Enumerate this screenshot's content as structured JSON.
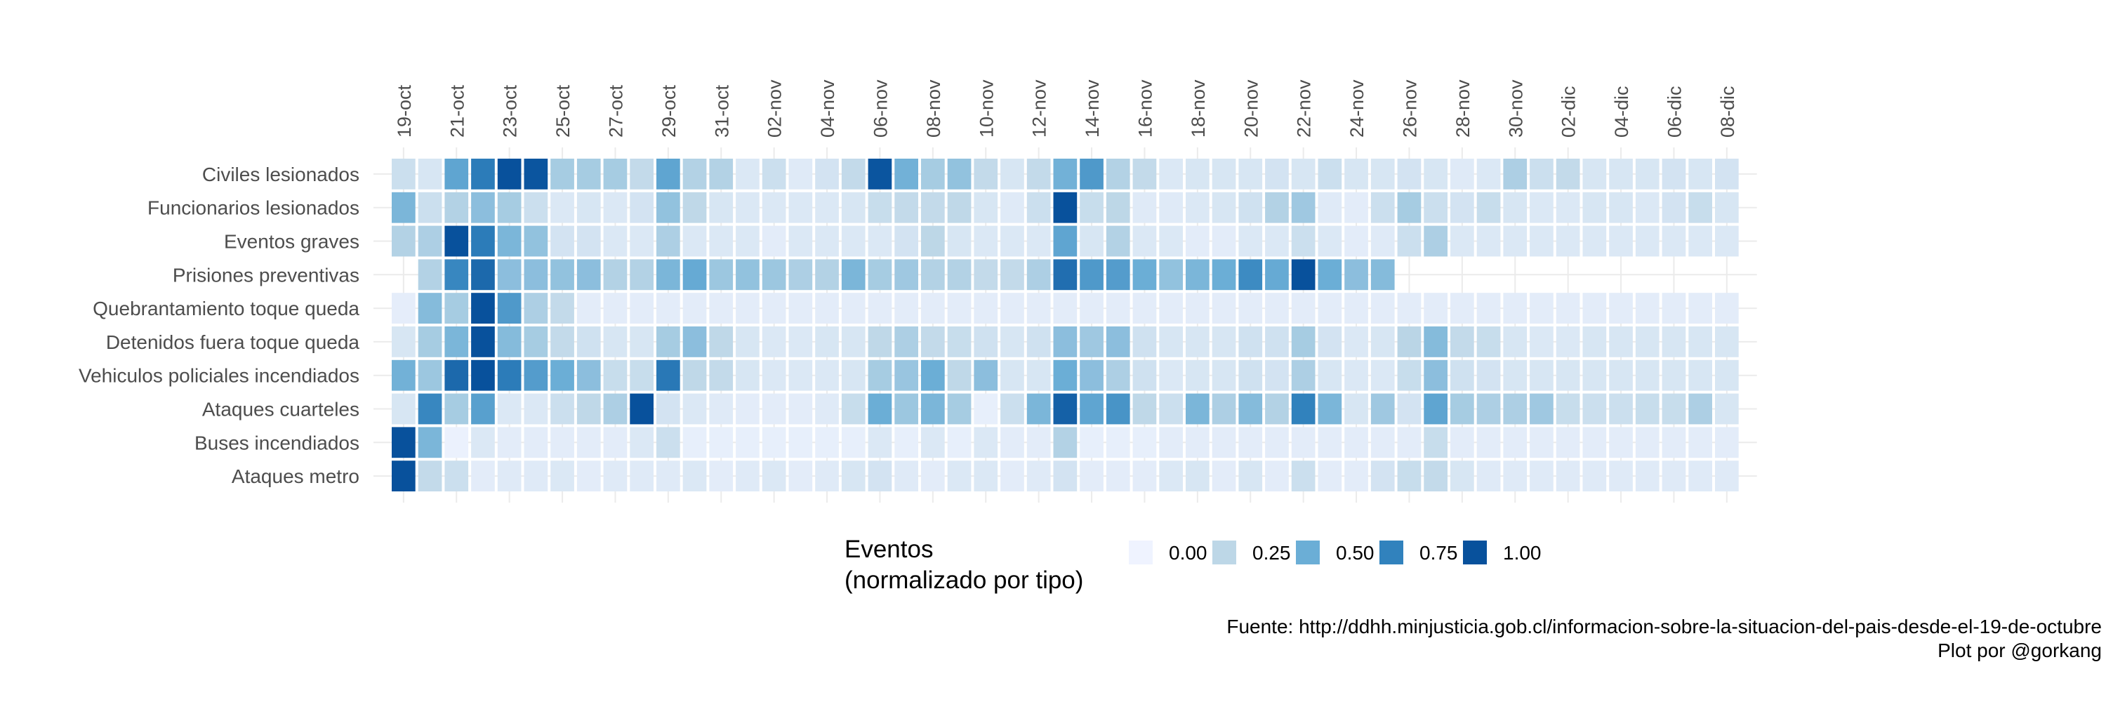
{
  "chart_data": {
    "type": "heatmap",
    "title": "",
    "xlabel": "",
    "ylabel": "",
    "x_tick_labels": [
      "19-oct",
      "21-oct",
      "23-oct",
      "25-oct",
      "27-oct",
      "29-oct",
      "31-oct",
      "02-nov",
      "04-nov",
      "06-nov",
      "08-nov",
      "10-nov",
      "12-nov",
      "14-nov",
      "16-nov",
      "18-nov",
      "20-nov",
      "22-nov",
      "24-nov",
      "26-nov",
      "28-nov",
      "30-nov",
      "02-dic",
      "04-dic",
      "06-dic",
      "08-dic"
    ],
    "x_start": "2019-10-19",
    "x_end": "2019-12-08",
    "rows": [
      "Civiles lesionados",
      "Funcionarios lesionados",
      "Eventos graves",
      "Prisiones preventivas",
      "Quebrantamiento toque queda",
      "Detenidos fuera toque queda",
      "Vehiculos policiales incendiados",
      "Ataques cuarteles",
      "Buses incendiados",
      "Ataques metro"
    ],
    "values": [
      [
        0.18,
        0.12,
        0.55,
        0.78,
        1.0,
        0.98,
        0.32,
        0.32,
        0.32,
        0.22,
        0.55,
        0.28,
        0.28,
        0.1,
        0.18,
        0.08,
        0.14,
        0.22,
        0.98,
        0.48,
        0.32,
        0.38,
        0.22,
        0.12,
        0.22,
        0.48,
        0.62,
        0.28,
        0.22,
        0.1,
        0.12,
        0.12,
        0.12,
        0.14,
        0.12,
        0.18,
        0.12,
        0.12,
        0.14,
        0.12,
        0.08,
        0.1,
        0.3,
        0.18,
        0.22,
        0.12,
        0.12,
        0.12,
        0.14,
        0.12,
        0.14
      ],
      [
        0.45,
        0.18,
        0.28,
        0.4,
        0.32,
        0.18,
        0.1,
        0.12,
        0.1,
        0.14,
        0.38,
        0.24,
        0.12,
        0.1,
        0.1,
        0.1,
        0.1,
        0.12,
        0.2,
        0.22,
        0.22,
        0.24,
        0.12,
        0.08,
        0.18,
        1.0,
        0.2,
        0.25,
        0.08,
        0.08,
        0.1,
        0.12,
        0.16,
        0.28,
        0.34,
        0.08,
        0.06,
        0.18,
        0.32,
        0.18,
        0.14,
        0.2,
        0.12,
        0.1,
        0.1,
        0.12,
        0.12,
        0.1,
        0.14,
        0.2,
        0.12
      ],
      [
        0.28,
        0.3,
        1.0,
        0.78,
        0.45,
        0.38,
        0.14,
        0.14,
        0.1,
        0.1,
        0.3,
        0.1,
        0.1,
        0.1,
        0.06,
        0.1,
        0.1,
        0.1,
        0.1,
        0.14,
        0.25,
        0.12,
        0.1,
        0.1,
        0.1,
        0.55,
        0.12,
        0.28,
        0.1,
        0.1,
        0.06,
        0.06,
        0.1,
        0.1,
        0.18,
        0.1,
        0.06,
        0.08,
        0.18,
        0.3,
        0.1,
        0.1,
        0.1,
        0.1,
        0.1,
        0.1,
        0.1,
        0.1,
        0.1,
        0.1,
        0.1
      ],
      [
        null,
        0.28,
        0.72,
        0.88,
        0.4,
        0.4,
        0.38,
        0.4,
        0.28,
        0.28,
        0.45,
        0.52,
        0.35,
        0.38,
        0.35,
        0.3,
        0.28,
        0.45,
        0.32,
        0.34,
        0.28,
        0.28,
        0.22,
        0.22,
        0.3,
        0.85,
        0.62,
        0.6,
        0.5,
        0.38,
        0.45,
        0.5,
        0.7,
        0.52,
        1.0,
        0.5,
        0.4,
        0.42,
        null,
        null,
        null,
        null,
        null,
        null,
        null,
        null,
        null,
        null,
        null,
        null,
        null
      ],
      [
        0.05,
        0.42,
        0.32,
        1.0,
        0.62,
        0.3,
        0.22,
        0.06,
        0.06,
        0.06,
        0.06,
        0.06,
        0.06,
        0.06,
        0.06,
        0.06,
        0.06,
        0.06,
        0.06,
        0.06,
        0.06,
        0.06,
        0.06,
        0.06,
        0.06,
        0.06,
        0.06,
        0.06,
        0.06,
        0.06,
        0.06,
        0.06,
        0.06,
        0.06,
        0.06,
        0.06,
        0.06,
        0.06,
        0.06,
        0.06,
        0.06,
        0.06,
        0.06,
        0.06,
        0.06,
        0.06,
        0.06,
        0.06,
        0.06,
        0.06,
        0.06
      ],
      [
        0.12,
        0.32,
        0.45,
        1.0,
        0.42,
        0.32,
        0.22,
        0.16,
        0.12,
        0.12,
        0.32,
        0.4,
        0.24,
        0.12,
        0.1,
        0.1,
        0.12,
        0.12,
        0.24,
        0.3,
        0.22,
        0.2,
        0.16,
        0.12,
        0.16,
        0.4,
        0.34,
        0.4,
        0.16,
        0.12,
        0.12,
        0.12,
        0.16,
        0.16,
        0.32,
        0.14,
        0.1,
        0.12,
        0.26,
        0.42,
        0.22,
        0.2,
        0.12,
        0.1,
        0.1,
        0.12,
        0.12,
        0.12,
        0.12,
        0.12,
        0.12
      ],
      [
        0.48,
        0.35,
        0.88,
        1.0,
        0.78,
        0.6,
        0.5,
        0.4,
        0.2,
        0.2,
        0.8,
        0.24,
        0.22,
        0.12,
        0.1,
        0.1,
        0.1,
        0.12,
        0.32,
        0.36,
        0.5,
        0.24,
        0.4,
        0.12,
        0.12,
        0.5,
        0.4,
        0.3,
        0.16,
        0.1,
        0.12,
        0.12,
        0.16,
        0.14,
        0.3,
        0.12,
        0.1,
        0.1,
        0.2,
        0.4,
        0.16,
        0.14,
        0.12,
        0.12,
        0.12,
        0.12,
        0.12,
        0.12,
        0.12,
        0.12,
        0.12
      ],
      [
        0.12,
        0.72,
        0.32,
        0.58,
        0.1,
        0.1,
        0.18,
        0.24,
        0.3,
        1.0,
        0.14,
        0.1,
        0.08,
        0.06,
        0.06,
        0.06,
        0.08,
        0.2,
        0.5,
        0.35,
        0.45,
        0.32,
        0.04,
        0.18,
        0.45,
        0.92,
        0.55,
        0.65,
        0.24,
        0.18,
        0.45,
        0.3,
        0.42,
        0.28,
        0.75,
        0.45,
        0.12,
        0.34,
        0.14,
        0.55,
        0.32,
        0.3,
        0.3,
        0.34,
        0.2,
        0.18,
        0.18,
        0.2,
        0.2,
        0.3,
        0.12
      ],
      [
        1.0,
        0.45,
        0.02,
        0.1,
        0.06,
        0.06,
        0.06,
        0.06,
        0.06,
        0.1,
        0.18,
        0.04,
        0.04,
        0.04,
        0.04,
        0.04,
        0.04,
        0.04,
        0.1,
        0.04,
        0.1,
        0.04,
        0.1,
        0.06,
        0.06,
        0.28,
        0.04,
        0.04,
        0.04,
        0.06,
        0.06,
        0.06,
        0.06,
        0.06,
        0.06,
        0.06,
        0.06,
        0.06,
        0.06,
        0.2,
        0.06,
        0.06,
        0.06,
        0.06,
        0.06,
        0.06,
        0.06,
        0.06,
        0.06,
        0.06,
        0.06
      ],
      [
        1.0,
        0.22,
        0.18,
        0.06,
        0.08,
        0.08,
        0.1,
        0.06,
        0.08,
        0.08,
        0.08,
        0.1,
        0.06,
        0.08,
        0.1,
        0.06,
        0.08,
        0.12,
        0.14,
        0.08,
        0.06,
        0.1,
        0.1,
        0.06,
        0.08,
        0.14,
        0.06,
        0.06,
        0.06,
        0.1,
        0.12,
        0.06,
        0.12,
        0.06,
        0.18,
        0.06,
        0.06,
        0.14,
        0.2,
        0.22,
        0.12,
        0.08,
        0.08,
        0.08,
        0.08,
        0.08,
        0.08,
        0.08,
        0.08,
        0.08,
        0.08
      ]
    ],
    "value_range": [
      0,
      1
    ],
    "color_scale": [
      "#eff3ff",
      "#bdd7e7",
      "#6baed6",
      "#3182bd",
      "#08519c"
    ],
    "grid": true,
    "legend": {
      "title_lines": [
        "Eventos",
        "(normalizado por tipo)"
      ],
      "position": "bottom",
      "breaks": [
        {
          "value": 0.0,
          "label": "0.00",
          "color": "#eff3ff"
        },
        {
          "value": 0.25,
          "label": "0.25",
          "color": "#bdd7e7"
        },
        {
          "value": 0.5,
          "label": "0.50",
          "color": "#6baed6"
        },
        {
          "value": 0.75,
          "label": "0.75",
          "color": "#3182bd"
        },
        {
          "value": 1.0,
          "label": "1.00",
          "color": "#08519c"
        }
      ]
    },
    "caption_lines": [
      "Fuente: http://ddhh.minjusticia.gob.cl/informacion-sobre-la-situacion-del-pais-desde-el-19-de-octubre",
      "Plot por @gorkang"
    ]
  }
}
